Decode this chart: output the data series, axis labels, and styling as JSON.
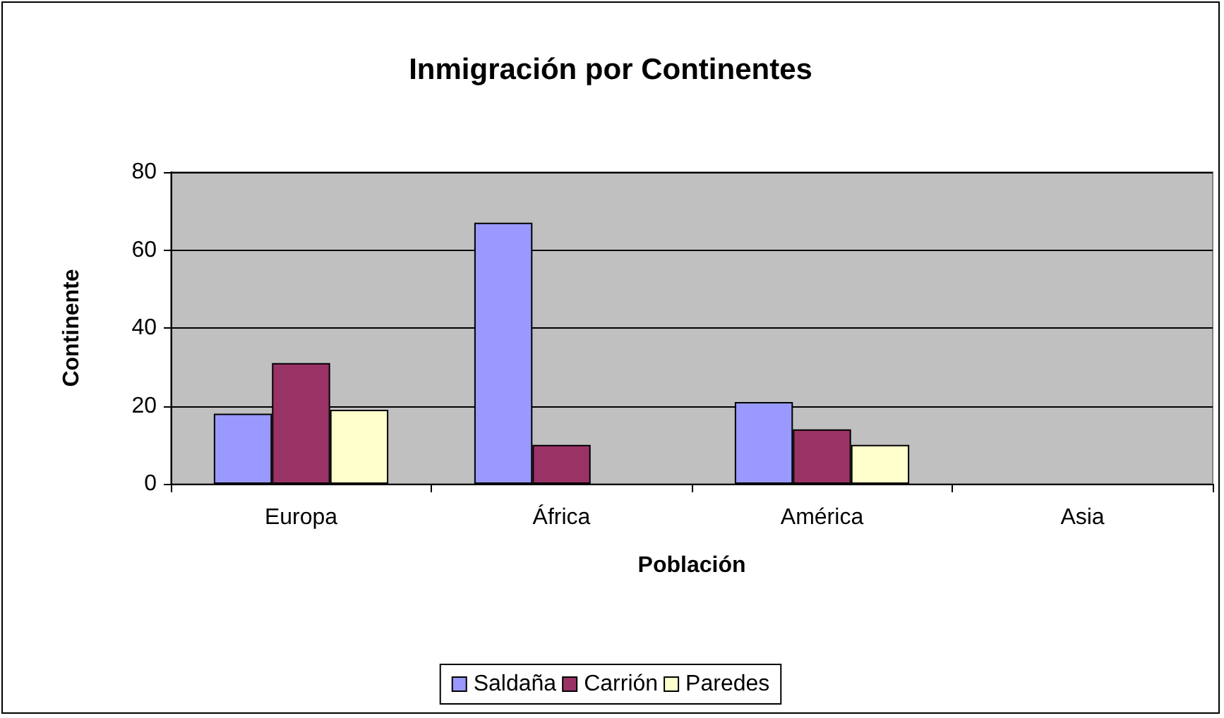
{
  "chart_data": {
    "type": "bar",
    "title": "Inmigración por Continentes",
    "xlabel": "Población",
    "ylabel": "Continente",
    "categories": [
      "Europa",
      "África",
      "América",
      "Asia"
    ],
    "series": [
      {
        "name": "Saldaña",
        "color": "#9999ff",
        "values": [
          18,
          67,
          21,
          null
        ]
      },
      {
        "name": "Carrión",
        "color": "#993366",
        "values": [
          31,
          10,
          14,
          null
        ]
      },
      {
        "name": "Paredes",
        "color": "#ffffcc",
        "values": [
          19,
          null,
          10,
          null
        ]
      }
    ],
    "ylim": [
      0,
      80
    ],
    "yticks": [
      0,
      20,
      40,
      60,
      80
    ],
    "grid": "y",
    "legend": "bottom"
  }
}
